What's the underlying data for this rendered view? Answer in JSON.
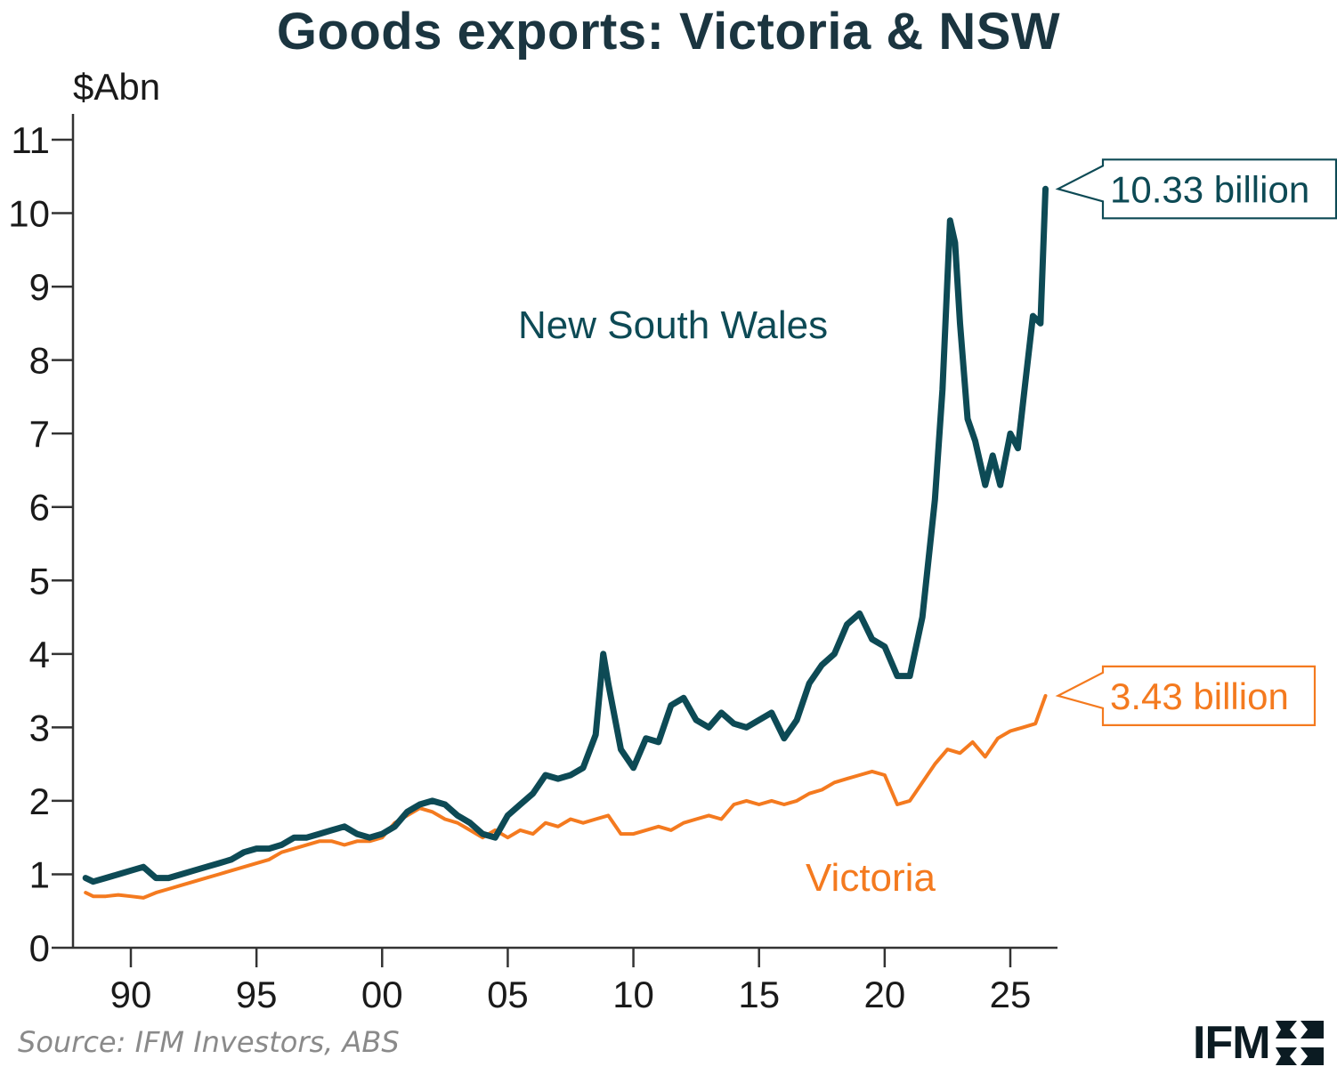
{
  "colors": {
    "nsw": "#0d4a55",
    "victoria": "#f47a1f",
    "axis": "#333333",
    "title": "#1b3540"
  },
  "chart_data": {
    "type": "line",
    "title": "Goods exports: Victoria & NSW",
    "ylabel": "$Abn",
    "xlabel": "",
    "ylim": [
      0,
      11
    ],
    "xlim": [
      1987.8,
      2026.7
    ],
    "y_ticks": [
      "0",
      "1",
      "2",
      "3",
      "4",
      "5",
      "6",
      "7",
      "8",
      "9",
      "10",
      "11"
    ],
    "x_ticks": [
      {
        "year": 1990,
        "label": "90"
      },
      {
        "year": 1995,
        "label": "95"
      },
      {
        "year": 2000,
        "label": "00"
      },
      {
        "year": 2005,
        "label": "05"
      },
      {
        "year": 2010,
        "label": "10"
      },
      {
        "year": 2015,
        "label": "15"
      },
      {
        "year": 2020,
        "label": "20"
      },
      {
        "year": 2025,
        "label": "25"
      }
    ],
    "grid": false,
    "series": [
      {
        "name": "New South Wales",
        "color": "#0d4a55",
        "points": [
          [
            1988.2,
            0.95
          ],
          [
            1988.5,
            0.9
          ],
          [
            1989.0,
            0.95
          ],
          [
            1989.5,
            1.0
          ],
          [
            1990.0,
            1.05
          ],
          [
            1990.5,
            1.1
          ],
          [
            1991.0,
            0.95
          ],
          [
            1991.5,
            0.95
          ],
          [
            1992.0,
            1.0
          ],
          [
            1992.5,
            1.05
          ],
          [
            1993.0,
            1.1
          ],
          [
            1993.5,
            1.15
          ],
          [
            1994.0,
            1.2
          ],
          [
            1994.5,
            1.3
          ],
          [
            1995.0,
            1.35
          ],
          [
            1995.5,
            1.35
          ],
          [
            1996.0,
            1.4
          ],
          [
            1996.5,
            1.5
          ],
          [
            1997.0,
            1.5
          ],
          [
            1997.5,
            1.55
          ],
          [
            1998.0,
            1.6
          ],
          [
            1998.5,
            1.65
          ],
          [
            1999.0,
            1.55
          ],
          [
            1999.5,
            1.5
          ],
          [
            2000.0,
            1.55
          ],
          [
            2000.5,
            1.65
          ],
          [
            2001.0,
            1.85
          ],
          [
            2001.5,
            1.95
          ],
          [
            2002.0,
            2.0
          ],
          [
            2002.5,
            1.95
          ],
          [
            2003.0,
            1.8
          ],
          [
            2003.5,
            1.7
          ],
          [
            2004.0,
            1.55
          ],
          [
            2004.5,
            1.5
          ],
          [
            2005.0,
            1.8
          ],
          [
            2005.5,
            1.95
          ],
          [
            2006.0,
            2.1
          ],
          [
            2006.5,
            2.35
          ],
          [
            2007.0,
            2.3
          ],
          [
            2007.5,
            2.35
          ],
          [
            2008.0,
            2.45
          ],
          [
            2008.5,
            2.9
          ],
          [
            2008.8,
            4.0
          ],
          [
            2009.0,
            3.6
          ],
          [
            2009.5,
            2.7
          ],
          [
            2010.0,
            2.45
          ],
          [
            2010.5,
            2.85
          ],
          [
            2011.0,
            2.8
          ],
          [
            2011.5,
            3.3
          ],
          [
            2012.0,
            3.4
          ],
          [
            2012.5,
            3.1
          ],
          [
            2013.0,
            3.0
          ],
          [
            2013.5,
            3.2
          ],
          [
            2014.0,
            3.05
          ],
          [
            2014.5,
            3.0
          ],
          [
            2015.0,
            3.1
          ],
          [
            2015.5,
            3.2
          ],
          [
            2016.0,
            2.85
          ],
          [
            2016.5,
            3.1
          ],
          [
            2017.0,
            3.6
          ],
          [
            2017.5,
            3.85
          ],
          [
            2018.0,
            4.0
          ],
          [
            2018.5,
            4.4
          ],
          [
            2019.0,
            4.55
          ],
          [
            2019.5,
            4.2
          ],
          [
            2020.0,
            4.1
          ],
          [
            2020.5,
            3.7
          ],
          [
            2021.0,
            3.7
          ],
          [
            2021.5,
            4.5
          ],
          [
            2022.0,
            6.1
          ],
          [
            2022.3,
            7.6
          ],
          [
            2022.6,
            9.9
          ],
          [
            2022.8,
            9.6
          ],
          [
            2023.0,
            8.5
          ],
          [
            2023.3,
            7.2
          ],
          [
            2023.6,
            6.9
          ],
          [
            2024.0,
            6.3
          ],
          [
            2024.3,
            6.7
          ],
          [
            2024.6,
            6.3
          ],
          [
            2025.0,
            7.0
          ],
          [
            2025.3,
            6.8
          ],
          [
            2025.6,
            7.7
          ],
          [
            2025.9,
            8.6
          ],
          [
            2026.2,
            8.5
          ],
          [
            2026.4,
            10.33
          ]
        ]
      },
      {
        "name": "Victoria",
        "color": "#f47a1f",
        "points": [
          [
            1988.2,
            0.75
          ],
          [
            1988.5,
            0.7
          ],
          [
            1989.0,
            0.7
          ],
          [
            1989.5,
            0.72
          ],
          [
            1990.0,
            0.7
          ],
          [
            1990.5,
            0.68
          ],
          [
            1991.0,
            0.75
          ],
          [
            1991.5,
            0.8
          ],
          [
            1992.0,
            0.85
          ],
          [
            1992.5,
            0.9
          ],
          [
            1993.0,
            0.95
          ],
          [
            1993.5,
            1.0
          ],
          [
            1994.0,
            1.05
          ],
          [
            1994.5,
            1.1
          ],
          [
            1995.0,
            1.15
          ],
          [
            1995.5,
            1.2
          ],
          [
            1996.0,
            1.3
          ],
          [
            1996.5,
            1.35
          ],
          [
            1997.0,
            1.4
          ],
          [
            1997.5,
            1.45
          ],
          [
            1998.0,
            1.45
          ],
          [
            1998.5,
            1.4
          ],
          [
            1999.0,
            1.45
          ],
          [
            1999.5,
            1.45
          ],
          [
            2000.0,
            1.5
          ],
          [
            2000.5,
            1.7
          ],
          [
            2001.0,
            1.8
          ],
          [
            2001.5,
            1.9
          ],
          [
            2002.0,
            1.85
          ],
          [
            2002.5,
            1.75
          ],
          [
            2003.0,
            1.7
          ],
          [
            2003.5,
            1.6
          ],
          [
            2004.0,
            1.5
          ],
          [
            2004.5,
            1.6
          ],
          [
            2005.0,
            1.5
          ],
          [
            2005.5,
            1.6
          ],
          [
            2006.0,
            1.55
          ],
          [
            2006.5,
            1.7
          ],
          [
            2007.0,
            1.65
          ],
          [
            2007.5,
            1.75
          ],
          [
            2008.0,
            1.7
          ],
          [
            2008.5,
            1.75
          ],
          [
            2009.0,
            1.8
          ],
          [
            2009.5,
            1.55
          ],
          [
            2010.0,
            1.55
          ],
          [
            2010.5,
            1.6
          ],
          [
            2011.0,
            1.65
          ],
          [
            2011.5,
            1.6
          ],
          [
            2012.0,
            1.7
          ],
          [
            2012.5,
            1.75
          ],
          [
            2013.0,
            1.8
          ],
          [
            2013.5,
            1.75
          ],
          [
            2014.0,
            1.95
          ],
          [
            2014.5,
            2.0
          ],
          [
            2015.0,
            1.95
          ],
          [
            2015.5,
            2.0
          ],
          [
            2016.0,
            1.95
          ],
          [
            2016.5,
            2.0
          ],
          [
            2017.0,
            2.1
          ],
          [
            2017.5,
            2.15
          ],
          [
            2018.0,
            2.25
          ],
          [
            2018.5,
            2.3
          ],
          [
            2019.0,
            2.35
          ],
          [
            2019.5,
            2.4
          ],
          [
            2020.0,
            2.35
          ],
          [
            2020.5,
            1.95
          ],
          [
            2021.0,
            2.0
          ],
          [
            2021.5,
            2.25
          ],
          [
            2022.0,
            2.5
          ],
          [
            2022.5,
            2.7
          ],
          [
            2023.0,
            2.65
          ],
          [
            2023.5,
            2.8
          ],
          [
            2024.0,
            2.6
          ],
          [
            2024.5,
            2.85
          ],
          [
            2025.0,
            2.95
          ],
          [
            2025.5,
            3.0
          ],
          [
            2026.0,
            3.05
          ],
          [
            2026.4,
            3.43
          ]
        ]
      }
    ],
    "annotations": [
      {
        "series": "New South Wales",
        "text": "10.33 billion",
        "value": 10.33
      },
      {
        "series": "Victoria",
        "text": "3.43 billion",
        "value": 3.43
      }
    ]
  },
  "footer": {
    "source": "Source: IFM Investors, ABS",
    "logo_text": "IFM"
  }
}
